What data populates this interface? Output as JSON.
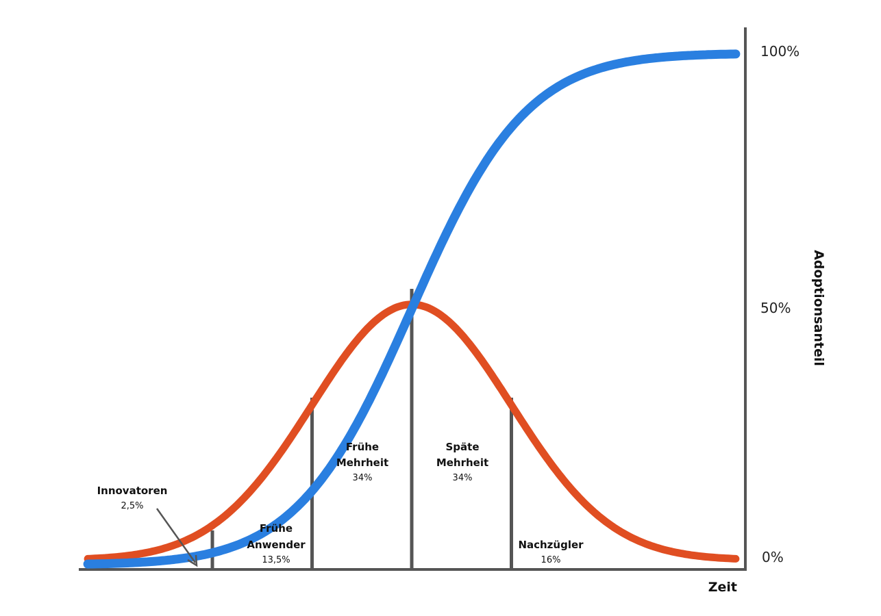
{
  "chart_data": {
    "type": "line",
    "title": "",
    "xlabel": "Zeit",
    "ylabel": "Adoptionsanteil",
    "y_ticks": [
      "0%",
      "50%",
      "100%"
    ],
    "ylim": [
      0,
      100
    ],
    "legend": "none",
    "grid": false,
    "colors": {
      "bell_curve": "#E04E22",
      "s_curve": "#2A7FE0",
      "axis": "#555555",
      "divider": "#555555"
    },
    "series": [
      {
        "kind": "normal-distribution",
        "mean": 0,
        "sd": 1,
        "color_key": "bell_curve",
        "peak_percent": 50,
        "x_range_sd": [
          -3.25,
          3.25
        ]
      },
      {
        "kind": "cumulative-adoption",
        "color_key": "s_curve",
        "x_range_sd": [
          -3.25,
          3.25
        ],
        "y_range_percent": [
          0,
          100
        ]
      }
    ],
    "dividers_sd": [
      -2,
      -1,
      0,
      1
    ],
    "segments": [
      {
        "title_lines": [
          "Innovatoren"
        ],
        "percent": "2,5%",
        "has_arrow": true
      },
      {
        "title_lines": [
          "Frühe",
          "Anwender"
        ],
        "percent": "13,5%"
      },
      {
        "title_lines": [
          "Frühe",
          "Mehrheit"
        ],
        "percent": "34%"
      },
      {
        "title_lines": [
          "Späte",
          "Mehrheit"
        ],
        "percent": "34%"
      },
      {
        "title_lines": [
          "Nachzügler"
        ],
        "percent": "16%"
      }
    ]
  }
}
